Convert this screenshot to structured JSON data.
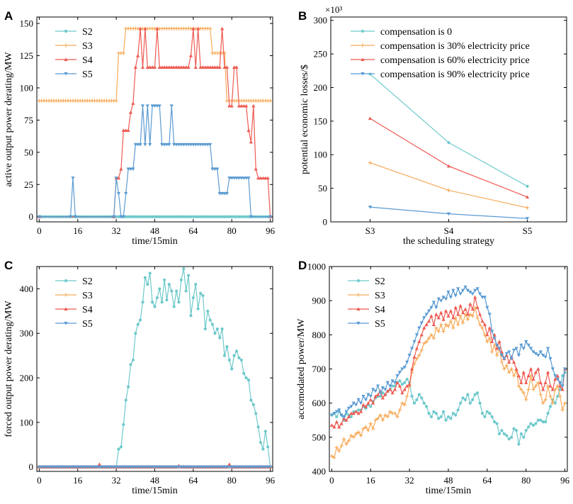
{
  "colors": {
    "S2": "#6ec9cc",
    "S3": "#f7a956",
    "S4": "#ee5a52",
    "S5": "#5b9bd2"
  },
  "chart_data": [
    {
      "panel": "A",
      "type": "line",
      "title": "",
      "xlabel": "time/15min",
      "ylabel": "active output power derating/MW",
      "xlim": [
        -1,
        97
      ],
      "ylim": [
        -4,
        155
      ],
      "xticks": [
        0,
        16,
        32,
        48,
        64,
        80,
        96
      ],
      "yticks": [
        0,
        25,
        50,
        75,
        100,
        125,
        150
      ],
      "legend": "top-left",
      "series": [
        {
          "name": "S2",
          "marker": "circle",
          "segments": [
            [
              0,
              96,
              0
            ]
          ]
        },
        {
          "name": "S3",
          "marker": "plus",
          "segments": [
            [
              0,
              32,
              90
            ],
            [
              33,
              35,
              127
            ],
            [
              36,
              71,
              146
            ],
            [
              72,
              77,
              127
            ],
            [
              78,
              96,
              90
            ]
          ]
        },
        {
          "name": "S4",
          "marker": "triangle-up",
          "x": [
            0,
            31,
            32,
            33,
            34,
            35,
            36,
            37,
            38,
            39,
            40,
            41,
            42,
            43,
            44,
            45,
            46,
            47,
            48,
            49,
            50,
            51,
            52,
            53,
            54,
            55,
            56,
            57,
            58,
            59,
            60,
            61,
            62,
            63,
            64,
            65,
            66,
            67,
            68,
            69,
            70,
            71,
            72,
            73,
            74,
            75,
            76,
            77,
            78,
            79,
            80,
            81,
            82,
            83,
            84,
            85,
            86,
            87,
            88,
            89,
            90,
            91,
            92,
            93,
            94,
            95,
            96
          ],
          "values": [
            0,
            0,
            30,
            30,
            37,
            67,
            67,
            67,
            81,
            88,
            116,
            125,
            146,
            116,
            146,
            116,
            116,
            116,
            116,
            146,
            116,
            116,
            116,
            116,
            116,
            116,
            116,
            116,
            116,
            116,
            116,
            116,
            116,
            125,
            146,
            116,
            146,
            116,
            116,
            116,
            116,
            116,
            116,
            116,
            116,
            116,
            146,
            116,
            116,
            86,
            86,
            116,
            116,
            86,
            86,
            86,
            86,
            67,
            58,
            86,
            37,
            30,
            30,
            30,
            30,
            30,
            0
          ]
        },
        {
          "name": "S5",
          "marker": "triangle-down",
          "x": [
            0,
            13,
            14,
            15,
            31,
            32,
            33,
            34,
            35,
            36,
            37,
            38,
            39,
            40,
            41,
            42,
            43,
            44,
            45,
            46,
            47,
            48,
            49,
            50,
            51,
            52,
            53,
            54,
            55,
            56,
            57,
            58,
            59,
            60,
            61,
            62,
            63,
            64,
            65,
            66,
            67,
            68,
            69,
            70,
            71,
            72,
            73,
            74,
            75,
            76,
            77,
            78,
            79,
            80,
            81,
            82,
            83,
            84,
            85,
            86,
            87,
            88,
            96
          ],
          "values": [
            0,
            0,
            30,
            0,
            0,
            30,
            18,
            0,
            0,
            18,
            37,
            37,
            37,
            56,
            56,
            56,
            86,
            56,
            86,
            56,
            86,
            86,
            86,
            86,
            56,
            56,
            56,
            56,
            86,
            56,
            56,
            56,
            56,
            56,
            56,
            56,
            56,
            56,
            56,
            56,
            56,
            56,
            56,
            56,
            56,
            37,
            37,
            37,
            18,
            18,
            18,
            18,
            30,
            30,
            30,
            30,
            30,
            30,
            30,
            30,
            30,
            0,
            0
          ]
        }
      ]
    },
    {
      "panel": "B",
      "type": "line",
      "title": "",
      "xlabel": "the scheduling strategy",
      "ylabel": "potential economic losses/$",
      "multiplier": "×10³",
      "categories": [
        "S3",
        "S4",
        "S5"
      ],
      "ylim": [
        0,
        305
      ],
      "yticks": [
        0,
        50,
        100,
        150,
        200,
        250,
        300
      ],
      "legend": "top-right",
      "series": [
        {
          "name": "compensation is 0",
          "marker": "circle",
          "values": [
            220,
            118,
            53
          ]
        },
        {
          "name": "compensation is 30% electricity price",
          "marker": "plus",
          "values": [
            88,
            47,
            21
          ]
        },
        {
          "name": "compensation is 60% electricity price",
          "marker": "triangle-up",
          "values": [
            154,
            83,
            37
          ]
        },
        {
          "name": "compensation is 90% electricity price",
          "marker": "triangle-down",
          "values": [
            22,
            12,
            5
          ]
        }
      ]
    },
    {
      "panel": "C",
      "type": "line",
      "title": "",
      "xlabel": "time/15min",
      "ylabel": "forced output power derating/MW",
      "xlim": [
        -1,
        97
      ],
      "ylim": [
        -10,
        450
      ],
      "xticks": [
        0,
        16,
        32,
        48,
        64,
        80,
        96
      ],
      "yticks": [
        0,
        100,
        200,
        300,
        400
      ],
      "legend": "top-left",
      "series": [
        {
          "name": "S2",
          "marker": "circle",
          "x": [
            0,
            1,
            2,
            3,
            4,
            5,
            6,
            7,
            8,
            9,
            10,
            11,
            12,
            13,
            14,
            15,
            16,
            17,
            18,
            19,
            20,
            21,
            22,
            23,
            24,
            25,
            26,
            27,
            28,
            29,
            30,
            31,
            32,
            33,
            34,
            35,
            36,
            37,
            38,
            39,
            40,
            41,
            42,
            43,
            44,
            45,
            46,
            47,
            48,
            49,
            50,
            51,
            52,
            53,
            54,
            55,
            56,
            57,
            58,
            59,
            60,
            61,
            62,
            63,
            64,
            65,
            66,
            67,
            68,
            69,
            70,
            71,
            72,
            73,
            74,
            75,
            76,
            77,
            78,
            79,
            80,
            81,
            82,
            83,
            84,
            85,
            86,
            87,
            88,
            89,
            90,
            91,
            92,
            93,
            94,
            95,
            96
          ],
          "values": [
            0,
            0,
            0,
            0,
            0,
            0,
            0,
            0,
            0,
            0,
            0,
            0,
            0,
            0,
            0,
            0,
            0,
            0,
            0,
            0,
            0,
            0,
            0,
            0,
            0,
            0,
            0,
            0,
            0,
            0,
            0,
            0,
            0,
            40,
            45,
            95,
            150,
            180,
            230,
            240,
            300,
            320,
            330,
            370,
            425,
            410,
            435,
            370,
            360,
            380,
            400,
            370,
            420,
            375,
            410,
            395,
            360,
            395,
            370,
            420,
            445,
            395,
            430,
            340,
            380,
            410,
            355,
            390,
            385,
            310,
            350,
            330,
            320,
            300,
            310,
            290,
            310,
            250,
            270,
            240,
            220,
            250,
            260,
            245,
            240,
            210,
            200,
            195,
            150,
            140,
            120,
            90,
            55,
            40,
            80,
            45,
            0
          ]
        },
        {
          "name": "S3",
          "marker": "plus",
          "points": [
            [
              0,
              0
            ],
            [
              96,
              0
            ]
          ]
        },
        {
          "name": "S4",
          "marker": "triangle-up",
          "points": [
            [
              0,
              0
            ],
            [
              24,
              0
            ],
            [
              25,
              6
            ],
            [
              26,
              0
            ],
            [
              57,
              0
            ],
            [
              58,
              3
            ],
            [
              59,
              0
            ],
            [
              78,
              0
            ],
            [
              79,
              6
            ],
            [
              80,
              0
            ],
            [
              96,
              0
            ]
          ]
        },
        {
          "name": "S5",
          "marker": "triangle-down",
          "points": [
            [
              0,
              0
            ],
            [
              96,
              0
            ]
          ]
        }
      ]
    },
    {
      "panel": "D",
      "type": "line",
      "title": "",
      "xlabel": "time/15min",
      "ylabel": "accomodated power/MW",
      "xlim": [
        -1,
        97
      ],
      "ylim": [
        400,
        1000
      ],
      "xticks": [
        0,
        16,
        32,
        48,
        64,
        80,
        96
      ],
      "yticks": [
        400,
        500,
        600,
        700,
        800,
        900,
        1000
      ],
      "legend": "top-left",
      "series": [
        {
          "name": "S2",
          "marker": "circle",
          "values": [
            565,
            570,
            560,
            575,
            565,
            550,
            570,
            565,
            560,
            575,
            575,
            580,
            580,
            590,
            585,
            595,
            590,
            605,
            615,
            620,
            620,
            630,
            625,
            635,
            640,
            650,
            650,
            660,
            665,
            655,
            660,
            670,
            660,
            620,
            600,
            610,
            625,
            615,
            600,
            590,
            570,
            560,
            575,
            570,
            555,
            560,
            575,
            550,
            560,
            555,
            570,
            565,
            580,
            600,
            615,
            610,
            625,
            600,
            610,
            625,
            630,
            600,
            570,
            560,
            575,
            570,
            560,
            545,
            540,
            510,
            520,
            510,
            505,
            495,
            500,
            525,
            520,
            480,
            510,
            500,
            520,
            530,
            540,
            535,
            540,
            550,
            550,
            545,
            545,
            570,
            590,
            610,
            600,
            620,
            640,
            680,
            690
          ]
        },
        {
          "name": "S3",
          "marker": "plus",
          "values": [
            445,
            440,
            470,
            460,
            475,
            495,
            480,
            490,
            505,
            500,
            510,
            515,
            505,
            525,
            530,
            520,
            540,
            525,
            550,
            555,
            565,
            550,
            565,
            560,
            575,
            570,
            570,
            560,
            580,
            600,
            595,
            620,
            650,
            690,
            715,
            730,
            740,
            755,
            775,
            780,
            790,
            800,
            790,
            820,
            810,
            830,
            810,
            830,
            825,
            840,
            820,
            850,
            830,
            855,
            835,
            860,
            845,
            860,
            855,
            880,
            850,
            830,
            820,
            800,
            780,
            790,
            750,
            770,
            740,
            760,
            720,
            700,
            710,
            690,
            700,
            680,
            695,
            650,
            640,
            630,
            610,
            640,
            680,
            640,
            650,
            660,
            625,
            600,
            610,
            650,
            620,
            600,
            640,
            650,
            620,
            580,
            600
          ]
        },
        {
          "name": "S4",
          "marker": "triangle-up",
          "values": [
            535,
            530,
            545,
            530,
            540,
            555,
            550,
            560,
            570,
            570,
            575,
            570,
            575,
            595,
            590,
            600,
            610,
            600,
            620,
            625,
            635,
            615,
            625,
            635,
            640,
            630,
            640,
            660,
            650,
            630,
            640,
            650,
            655,
            700,
            735,
            760,
            780,
            800,
            820,
            830,
            840,
            855,
            830,
            860,
            850,
            865,
            845,
            870,
            855,
            870,
            850,
            880,
            860,
            885,
            865,
            875,
            860,
            890,
            875,
            910,
            880,
            860,
            840,
            830,
            800,
            820,
            780,
            800,
            760,
            780,
            750,
            730,
            740,
            720,
            735,
            720,
            700,
            680,
            660,
            690,
            660,
            680,
            700,
            670,
            690,
            700,
            660,
            640,
            660,
            690,
            650,
            640,
            670,
            680,
            650,
            640,
            700
          ]
        },
        {
          "name": "S5",
          "marker": "triangle-down",
          "values": [
            565,
            570,
            575,
            580,
            565,
            560,
            575,
            585,
            590,
            600,
            595,
            610,
            600,
            620,
            610,
            625,
            620,
            640,
            635,
            650,
            630,
            645,
            640,
            660,
            650,
            665,
            660,
            680,
            690,
            700,
            705,
            720,
            740,
            760,
            780,
            800,
            820,
            835,
            850,
            860,
            870,
            880,
            895,
            880,
            905,
            900,
            910,
            905,
            925,
            910,
            930,
            915,
            935,
            920,
            930,
            940,
            930,
            925,
            920,
            930,
            935,
            920,
            910,
            910,
            880,
            860,
            810,
            790,
            770,
            760,
            740,
            730,
            745,
            750,
            730,
            755,
            760,
            740,
            770,
            760,
            780,
            770,
            760,
            750,
            745,
            740,
            750,
            740,
            735,
            760,
            730,
            700,
            680,
            670,
            660,
            650,
            700
          ]
        }
      ]
    }
  ]
}
